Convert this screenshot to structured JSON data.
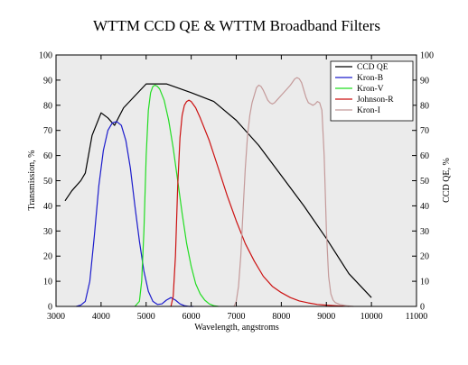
{
  "chart_data": {
    "type": "line",
    "title": "WTTM CCD QE & WTTM Broadband Filters",
    "xlabel": "Wavelength, angstroms",
    "ylabel_left": "Transmission, %",
    "ylabel_right": "CCD QE, %",
    "xlim": [
      3000,
      11000
    ],
    "ylim": [
      0,
      100
    ],
    "x_ticks": [
      3000,
      4000,
      5000,
      6000,
      7000,
      8000,
      9000,
      10000,
      11000
    ],
    "y_ticks": [
      0,
      10,
      20,
      30,
      40,
      50,
      60,
      70,
      80,
      90,
      100
    ],
    "plot_background": "#ebebeb",
    "grid": false,
    "legend_position": "top-right",
    "series": [
      {
        "name": "CCD QE",
        "color": "#000000",
        "x": [
          3200,
          3350,
          3550,
          3650,
          3800,
          4000,
          4150,
          4300,
          4500,
          5000,
          5450,
          6000,
          6500,
          7000,
          7500,
          8000,
          8500,
          9000,
          9500,
          10000
        ],
        "y": [
          42,
          46,
          50,
          53,
          68,
          77,
          75,
          72,
          79,
          88.5,
          88.5,
          85,
          81.5,
          74,
          64,
          52,
          40,
          27,
          13,
          3.5
        ]
      },
      {
        "name": "Kron-B",
        "color": "#1c1ccc",
        "x": [
          3450,
          3550,
          3650,
          3750,
          3850,
          3950,
          4050,
          4150,
          4250,
          4350,
          4450,
          4550,
          4650,
          4750,
          4850,
          4950,
          5050,
          5150,
          5250,
          5350,
          5450,
          5550,
          5650,
          5750,
          5850,
          5950,
          6050
        ],
        "y": [
          0,
          0.5,
          2,
          10,
          28,
          48,
          62,
          70,
          73,
          73.5,
          72,
          66,
          55,
          40,
          26,
          14,
          6,
          2,
          0.8,
          1,
          2.5,
          3.5,
          2.5,
          1,
          0.3,
          0,
          0
        ]
      },
      {
        "name": "Kron-V",
        "color": "#22dd22",
        "x": [
          4750,
          4850,
          4900,
          4950,
          5000,
          5050,
          5100,
          5150,
          5200,
          5250,
          5300,
          5400,
          5500,
          5600,
          5700,
          5800,
          5900,
          6000,
          6100,
          6200,
          6300,
          6400,
          6500,
          6600
        ],
        "y": [
          0,
          2,
          10,
          30,
          60,
          78,
          85,
          87.5,
          88,
          87.5,
          86.5,
          82,
          74,
          63,
          50,
          37,
          25,
          16,
          9,
          5,
          2.5,
          1,
          0.3,
          0
        ]
      },
      {
        "name": "Johnson-R",
        "color": "#cc1111",
        "x": [
          5550,
          5600,
          5650,
          5700,
          5750,
          5800,
          5850,
          5900,
          5950,
          6000,
          6100,
          6200,
          6400,
          6600,
          6800,
          7000,
          7200,
          7400,
          7600,
          7800,
          8000,
          8200,
          8400,
          8600,
          8800,
          9000,
          9200,
          9400,
          9500
        ],
        "y": [
          0,
          4,
          20,
          48,
          67,
          76,
          80,
          81.5,
          82,
          81.5,
          79,
          75,
          66,
          55,
          44,
          34,
          25,
          18,
          12,
          8,
          5.5,
          3.5,
          2.2,
          1.4,
          0.8,
          0.5,
          0.3,
          0.1,
          0
        ]
      },
      {
        "name": "Kron-I",
        "color": "#c49a9a",
        "x": [
          6950,
          7000,
          7050,
          7100,
          7150,
          7200,
          7250,
          7300,
          7350,
          7400,
          7450,
          7500,
          7550,
          7600,
          7650,
          7700,
          7750,
          7800,
          7850,
          7900,
          8000,
          8100,
          8200,
          8300,
          8350,
          8400,
          8450,
          8500,
          8550,
          8600,
          8650,
          8700,
          8750,
          8800,
          8850,
          8900,
          8950,
          9000,
          9050,
          9100,
          9150,
          9200,
          9300,
          9450,
          9600
        ],
        "y": [
          0,
          2,
          8,
          20,
          38,
          55,
          68,
          76,
          81,
          84,
          87,
          88,
          87.5,
          86,
          84,
          82,
          81,
          80.5,
          81,
          82,
          84,
          86,
          88,
          90.5,
          91,
          90.5,
          89,
          86,
          83,
          81,
          80.5,
          80,
          80.5,
          81.5,
          81,
          78,
          60,
          30,
          12,
          5,
          2.5,
          1.5,
          0.8,
          0.3,
          0
        ]
      }
    ]
  }
}
